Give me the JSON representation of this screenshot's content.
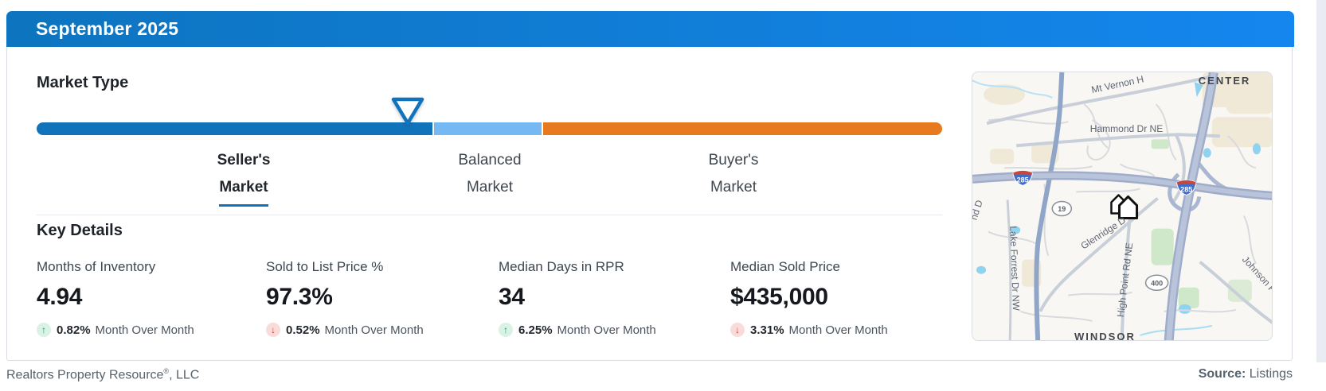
{
  "header": {
    "title": "September 2025"
  },
  "market_type": {
    "heading": "Market Type",
    "gauge": {
      "current": "Seller's Market",
      "indicator_pct": 41.0,
      "segments": [
        {
          "name": "Seller's Market",
          "color": "#1173ba",
          "width_pct": 43.9
        },
        {
          "name": "Balanced Market",
          "color": "#74b9f1",
          "width_pct": 11.9
        },
        {
          "name": "Buyer's Market",
          "color": "#e7791f",
          "width_pct": 44.2
        }
      ]
    },
    "labels": [
      {
        "line1": "Seller's",
        "line2": "Market",
        "active": true
      },
      {
        "line1": "Balanced",
        "line2": "Market",
        "active": false
      },
      {
        "line1": "Buyer's",
        "line2": "Market",
        "active": false
      }
    ]
  },
  "key_details": {
    "heading": "Key Details",
    "metrics": [
      {
        "label": "Months of Inventory",
        "value": "4.94",
        "direction": "up",
        "arrow": "↑",
        "change": "0.82%",
        "period": "Month Over Month"
      },
      {
        "label": "Sold to List Price %",
        "value": "97.3%",
        "direction": "down",
        "arrow": "↓",
        "change": "0.52%",
        "period": "Month Over Month"
      },
      {
        "label": "Median Days in RPR",
        "value": "34",
        "direction": "up",
        "arrow": "↑",
        "change": "6.25%",
        "period": "Month Over Month"
      },
      {
        "label": "Median Sold Price",
        "value": "$435,000",
        "direction": "down",
        "arrow": "↓",
        "change": "3.31%",
        "period": "Month Over Month"
      }
    ]
  },
  "map": {
    "place_labels": {
      "center": "CENTER",
      "windsor": "WINDSOR"
    },
    "road_labels": {
      "mt_vernon": "Mt Vernon H",
      "hammond": "Hammond Dr NE",
      "glenridge": "Glenridge D",
      "high_point": "High Point Rd NE",
      "lake_forrest": "Lake Forrest Dr NW",
      "johnson": "Johnson F",
      "nd_dr": "nd D"
    },
    "shields": {
      "i285_a": "285",
      "i285_b": "285",
      "route19": "19",
      "route400": "400"
    }
  },
  "footer": {
    "brand": "Realtors Property Resource",
    "reg_mark": "®",
    "brand_suffix": ", LLC",
    "source_label": "Source:",
    "source_value": "Listings"
  },
  "colors": {
    "seller_blue": "#1173ba",
    "balanced_blue": "#74b9f1",
    "buyer_orange": "#e7791f",
    "up_green": "#0da06b",
    "up_green_bg": "#d9f2e5",
    "down_red": "#d53a2e",
    "down_red_bg": "#f9dcd9",
    "header_blue_left": "#0d74bf",
    "header_blue_right": "#1486ee"
  }
}
